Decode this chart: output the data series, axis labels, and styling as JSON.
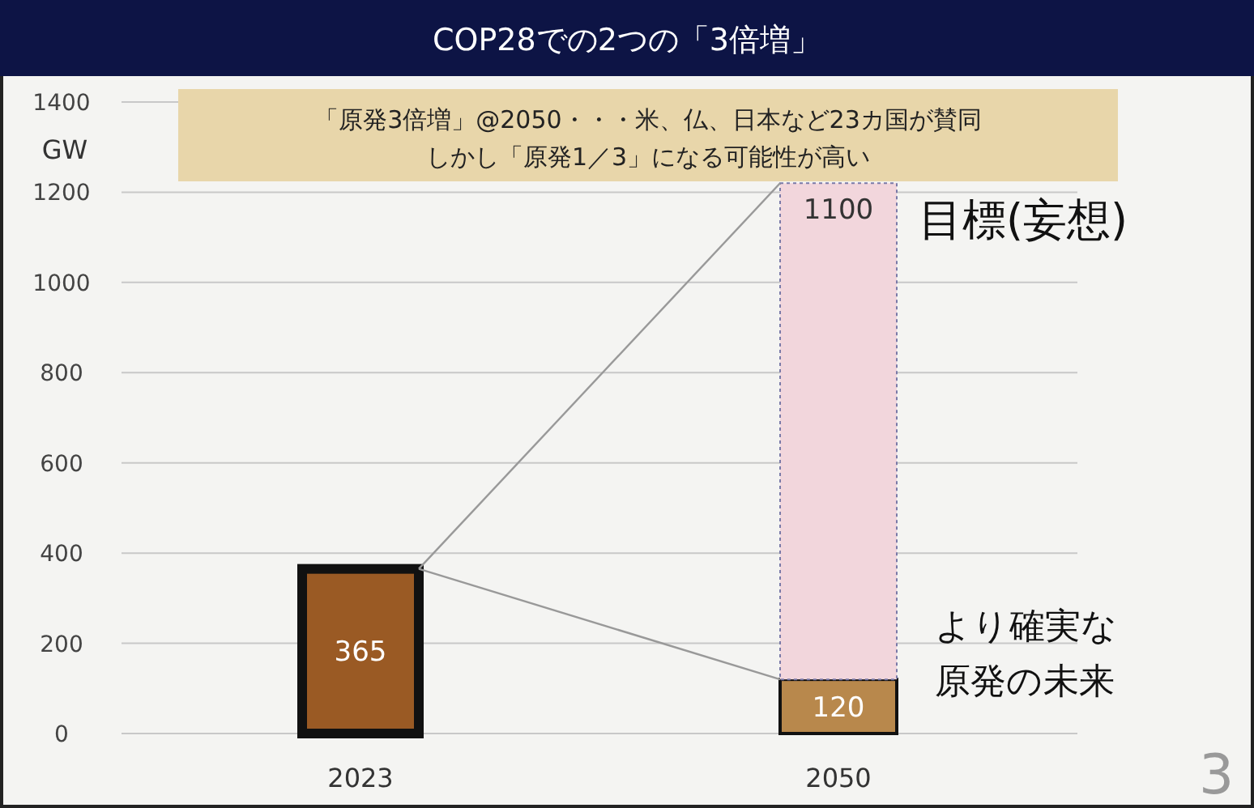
{
  "chart_data": {
    "type": "bar",
    "stacked": true,
    "title": "COP28での2つの「3倍増」",
    "ylabel": "GW",
    "categories": [
      "2023",
      "2050"
    ],
    "series": [
      {
        "colors": [
          "#9a5a24",
          "#b8884c"
        ],
        "values": [
          365,
          120
        ]
      },
      {
        "color": "#f2d6dc",
        "values": [
          null,
          1100
        ]
      }
    ],
    "data_labels": true,
    "ylim": [
      0,
      1400
    ],
    "yticks": [
      0,
      200,
      400,
      600,
      800,
      1000,
      1200,
      1400
    ],
    "grid": "y",
    "annotations": [
      "「原発3倍増」@2050・・・米、仏、日本など23カ国が賛同",
      "しかし「原発1／3」になる可能性が高い",
      "目標(妄想)",
      "より確実な",
      "原発の未来",
      "3"
    ]
  }
}
